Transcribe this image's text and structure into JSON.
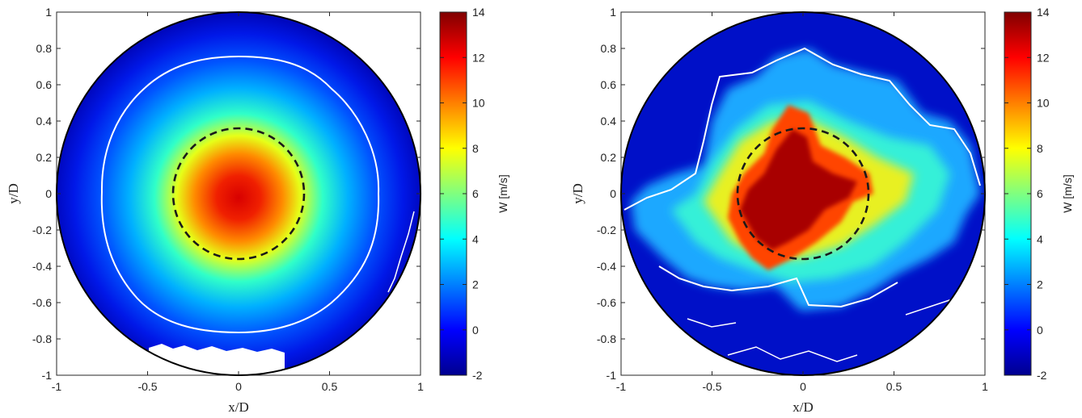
{
  "chart_data": [
    {
      "type": "heatmap",
      "panel": "left",
      "title": "",
      "xlabel": "x/D",
      "ylabel": "y/D",
      "xlim": [
        -1,
        1
      ],
      "ylim": [
        -1,
        1
      ],
      "xticks": [
        "-1",
        "-0.5",
        "0",
        "0.5",
        "1"
      ],
      "yticks": [
        "1",
        "0.8",
        "0.6",
        "0.4",
        "0.2",
        "0",
        "-0.2",
        "-0.4",
        "-0.6",
        "-0.8",
        "-1"
      ],
      "domain": "circle of radius 1 centered at (0,0)",
      "field": "mean axial velocity W, peak at center",
      "peak_value": 11,
      "peak_location": [
        0,
        -0.02
      ],
      "edge_value": -1,
      "white_contour_radius": 0.76,
      "dashed_circle": {
        "center": [
          0,
          0
        ],
        "radius": 0.36
      },
      "colorbar": {
        "label": "W [m/s]",
        "min": -2,
        "max": 14,
        "ticks": [
          "14",
          "12",
          "10",
          "8",
          "6",
          "4",
          "2",
          "0",
          "-2"
        ],
        "colormap": "jet"
      }
    },
    {
      "type": "heatmap",
      "panel": "right",
      "title": "",
      "xlabel": "x/D",
      "ylabel": "y/D",
      "xlim": [
        -1,
        1
      ],
      "ylim": [
        -1,
        1
      ],
      "xticks": [
        "-1",
        "-0.5",
        "0",
        "0.5",
        "1"
      ],
      "yticks": [
        "1",
        "0.8",
        "0.6",
        "0.4",
        "0.2",
        "0",
        "-0.2",
        "-0.4",
        "-0.6",
        "-0.8",
        "-1"
      ],
      "domain": "circle of radius 1 centered at (0,0)",
      "field": "instantaneous axial velocity W, turbulent core",
      "peak_value": 14,
      "core_location": [
        -0.05,
        0.05
      ],
      "edge_value": -1,
      "dashed_circle": {
        "center": [
          0,
          0
        ],
        "radius": 0.36
      },
      "colorbar": {
        "label": "W [m/s]",
        "min": -2,
        "max": 14,
        "ticks": [
          "14",
          "12",
          "10",
          "8",
          "6",
          "4",
          "2",
          "0",
          "-2"
        ],
        "colormap": "jet"
      }
    }
  ]
}
